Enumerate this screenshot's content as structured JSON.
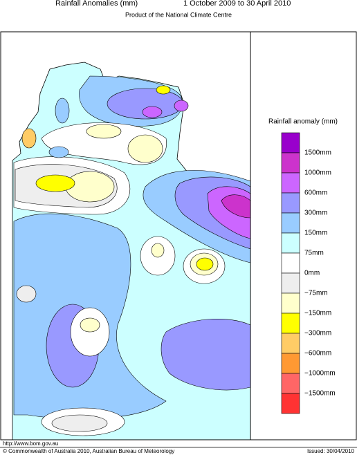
{
  "header": {
    "title": "Rainfall Anomalies (mm)",
    "period": "1 October 2009 to 30 April 2010",
    "subtitle": "Product of the National Climate Centre"
  },
  "legend": {
    "title": "Rainfall anomaly (mm)",
    "labels": [
      "1500mm",
      "1000mm",
      "600mm",
      "300mm",
      "150mm",
      "75mm",
      "0mm",
      "−75mm",
      "−150mm",
      "−300mm",
      "−600mm",
      "−1000mm",
      "−1500mm"
    ],
    "colors": [
      "#9900cc",
      "#cc33cc",
      "#cc66ff",
      "#9999ff",
      "#99ccff",
      "#ccffff",
      "#ffffff",
      "#eeeeee",
      "#ffffcc",
      "#ffff00",
      "#ffcc66",
      "#ff9933",
      "#ff6666",
      "#ff3333"
    ]
  },
  "footer": {
    "url": "http://www.bom.gov.au",
    "copyright": "© Commonwealth of Australia 2010, Australian Bureau of Meteorology",
    "issued": "Issued: 30/04/2010"
  }
}
